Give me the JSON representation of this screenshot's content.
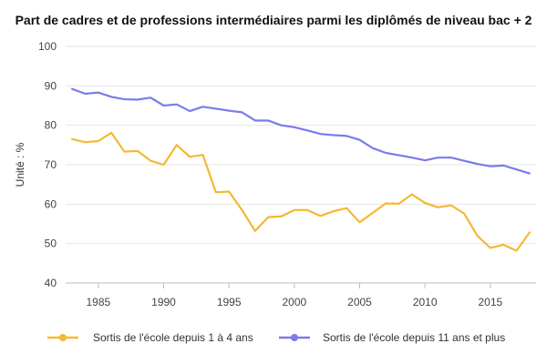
{
  "chart_data": {
    "type": "line",
    "title": "Part de cadres et de professions intermédiaires parmi les diplômés de niveau bac + 2",
    "xlabel": "",
    "ylabel": "Unité : %",
    "xlim": [
      1982.5,
      2018.5
    ],
    "ylim": [
      40,
      100
    ],
    "xticks": [
      1985,
      1990,
      1995,
      2000,
      2005,
      2010,
      2015
    ],
    "yticks": [
      40,
      50,
      60,
      70,
      80,
      90,
      100
    ],
    "grid": "horizontal",
    "legend_position": "bottom",
    "x": [
      1983,
      1984,
      1985,
      1986,
      1987,
      1988,
      1989,
      1990,
      1991,
      1992,
      1993,
      1994,
      1995,
      1996,
      1997,
      1998,
      1999,
      2000,
      2001,
      2002,
      2003,
      2004,
      2005,
      2006,
      2007,
      2008,
      2009,
      2010,
      2011,
      2012,
      2013,
      2014,
      2015,
      2016,
      2017,
      2018
    ],
    "series": [
      {
        "name": "Sortis de l'école depuis 1 à 4 ans",
        "color": "#f7b733",
        "values": [
          76.5,
          75.7,
          76.0,
          78.1,
          73.3,
          73.5,
          71.0,
          70.0,
          75.0,
          72.0,
          72.5,
          63.0,
          63.2,
          58.5,
          53.2,
          56.7,
          56.9,
          58.5,
          58.5,
          57.0,
          58.2,
          59.0,
          55.4,
          57.8,
          60.2,
          60.1,
          62.5,
          60.3,
          59.2,
          59.7,
          57.6,
          52.0,
          48.9,
          49.7,
          48.2,
          52.8
        ]
      },
      {
        "name": "Sortis de l'école depuis 11 ans et plus",
        "color": "#7b7bea",
        "values": [
          89.2,
          88.0,
          88.3,
          87.2,
          86.6,
          86.5,
          87.0,
          85.0,
          85.3,
          83.6,
          84.7,
          84.2,
          83.7,
          83.3,
          81.2,
          81.2,
          80.0,
          79.5,
          78.7,
          77.8,
          77.5,
          77.3,
          76.3,
          74.2,
          73.0,
          72.4,
          71.8,
          71.1,
          71.8,
          71.8,
          71.0,
          70.2,
          69.6,
          69.8,
          68.8,
          67.8
        ]
      }
    ]
  }
}
